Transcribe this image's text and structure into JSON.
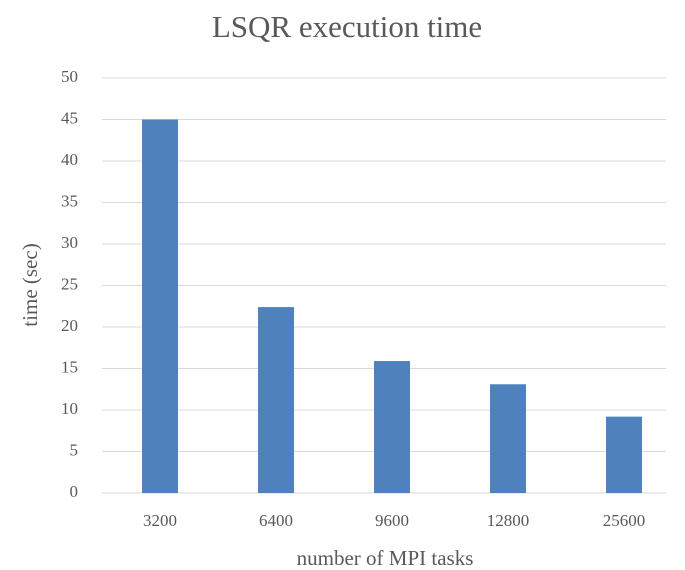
{
  "chart_data": {
    "type": "bar",
    "title": "LSQR execution time",
    "x_label": "number of MPI tasks",
    "y_label": "time (sec)",
    "categories": [
      "3200",
      "6400",
      "9600",
      "12800",
      "25600"
    ],
    "values": [
      45,
      22.4,
      15.9,
      13.1,
      9.2
    ],
    "color": "#4f81bd",
    "ylim": [
      0,
      50
    ],
    "yticks": [
      0,
      5,
      10,
      15,
      20,
      25,
      30,
      35,
      40,
      45,
      50
    ],
    "grid": true
  }
}
